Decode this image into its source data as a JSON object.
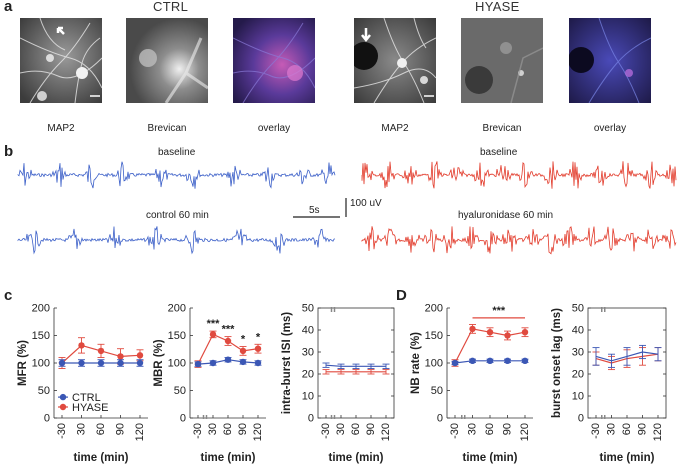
{
  "panels": {
    "a": "a",
    "b": "b",
    "c": "c",
    "d": "D"
  },
  "panel_a": {
    "group_ctrl": "CTRL",
    "group_hyase": "HYASE",
    "captions": [
      "MAP2",
      "Brevican",
      "overlay",
      "MAP2",
      "Brevican",
      "overlay"
    ]
  },
  "panel_b": {
    "ctrl_baseline": "baseline",
    "ctrl_treated": "control 60 min",
    "hyase_baseline": "baseline",
    "hyase_treated": "hyaluronidase 60 min",
    "time_scale": "5s",
    "amp_scale": "100 uV",
    "colors": {
      "ctrl": "#3b5fc8",
      "hyase": "#e23a2a"
    }
  },
  "legend": {
    "ctrl": "CTRL",
    "hyase": "HYASE"
  },
  "colors": {
    "ctrl": "#3b57b5",
    "hyase": "#e04a3f"
  },
  "chart_data": [
    {
      "id": "mfr",
      "type": "line",
      "ylabel": "MFR (%)",
      "xlabel": "time (min)",
      "x": [
        -30,
        30,
        60,
        90,
        120
      ],
      "xticks": [
        "-30",
        "30",
        "60",
        "90",
        "120"
      ],
      "ylim": [
        0,
        200
      ],
      "yticks": [
        "0",
        "50",
        "100",
        "150",
        "200"
      ],
      "series": [
        {
          "name": "CTRL",
          "values": [
            100,
            100,
            100,
            100,
            100
          ],
          "err": [
            6,
            6,
            6,
            6,
            6
          ]
        },
        {
          "name": "HYASE",
          "values": [
            100,
            132,
            122,
            112,
            114
          ],
          "err": [
            10,
            14,
            12,
            14,
            10
          ]
        }
      ],
      "significance": []
    },
    {
      "id": "mbr",
      "type": "line",
      "ylabel": "MBR (%)",
      "xlabel": "time (min)",
      "x": [
        -30,
        30,
        60,
        90,
        120
      ],
      "xticks": [
        "-30",
        "30",
        "60",
        "90",
        "120"
      ],
      "ylim": [
        0,
        200
      ],
      "yticks": [
        "0",
        "50",
        "100",
        "150",
        "200"
      ],
      "series": [
        {
          "name": "CTRL",
          "values": [
            98,
            100,
            106,
            102,
            100
          ],
          "err": [
            4,
            4,
            4,
            4,
            4
          ]
        },
        {
          "name": "HYASE",
          "values": [
            98,
            152,
            140,
            122,
            126
          ],
          "err": [
            6,
            6,
            8,
            8,
            8
          ]
        }
      ],
      "significance": [
        "***",
        "***",
        "*",
        "*"
      ]
    },
    {
      "id": "isi",
      "type": "line",
      "ylabel": "intra-burst ISI (ms)",
      "xlabel": "time (min)",
      "x": [
        -30,
        30,
        60,
        90,
        120
      ],
      "xticks": [
        "-30",
        "30",
        "60",
        "90",
        "120"
      ],
      "ylim": [
        0,
        50
      ],
      "yticks": [
        "0",
        "10",
        "20",
        "30",
        "40",
        "50"
      ],
      "series": [
        {
          "name": "CTRL",
          "values": [
            24,
            23.5,
            23.5,
            23.5,
            23.5
          ],
          "err": [
            1,
            1,
            1,
            1,
            1
          ]
        },
        {
          "name": "HYASE",
          "values": [
            21,
            21,
            21,
            21,
            21
          ],
          "err": [
            1,
            1,
            1,
            1,
            1
          ]
        }
      ],
      "significance": []
    },
    {
      "id": "nb",
      "type": "line",
      "ylabel": "NB rate (%)",
      "xlabel": "time (min)",
      "x": [
        -30,
        30,
        60,
        90,
        120
      ],
      "xticks": [
        "-30",
        "30",
        "60",
        "90",
        "120"
      ],
      "ylim": [
        0,
        200
      ],
      "yticks": [
        "0",
        "50",
        "100",
        "150",
        "200"
      ],
      "series": [
        {
          "name": "CTRL",
          "values": [
            100,
            104,
            104,
            104,
            104
          ],
          "err": [
            3,
            3,
            3,
            3,
            3
          ]
        },
        {
          "name": "HYASE",
          "values": [
            100,
            162,
            156,
            150,
            156
          ],
          "err": [
            6,
            8,
            8,
            8,
            8
          ]
        }
      ],
      "significance": [
        "***"
      ]
    },
    {
      "id": "lag",
      "type": "line",
      "ylabel": "burst onset lag (ms)",
      "xlabel": "time (min)",
      "x": [
        -30,
        30,
        60,
        90,
        120
      ],
      "xticks": [
        "-30",
        "30",
        "60",
        "90",
        "120"
      ],
      "ylim": [
        0,
        50
      ],
      "yticks": [
        "0",
        "10",
        "20",
        "30",
        "40",
        "50"
      ],
      "series": [
        {
          "name": "CTRL",
          "values": [
            28,
            26,
            28,
            30,
            29
          ],
          "err": [
            4,
            3,
            4,
            3,
            3
          ]
        },
        {
          "name": "HYASE",
          "values": [
            27,
            25,
            27,
            28,
            29
          ],
          "err": [
            3,
            3,
            4,
            4,
            3
          ]
        }
      ],
      "significance": []
    }
  ]
}
